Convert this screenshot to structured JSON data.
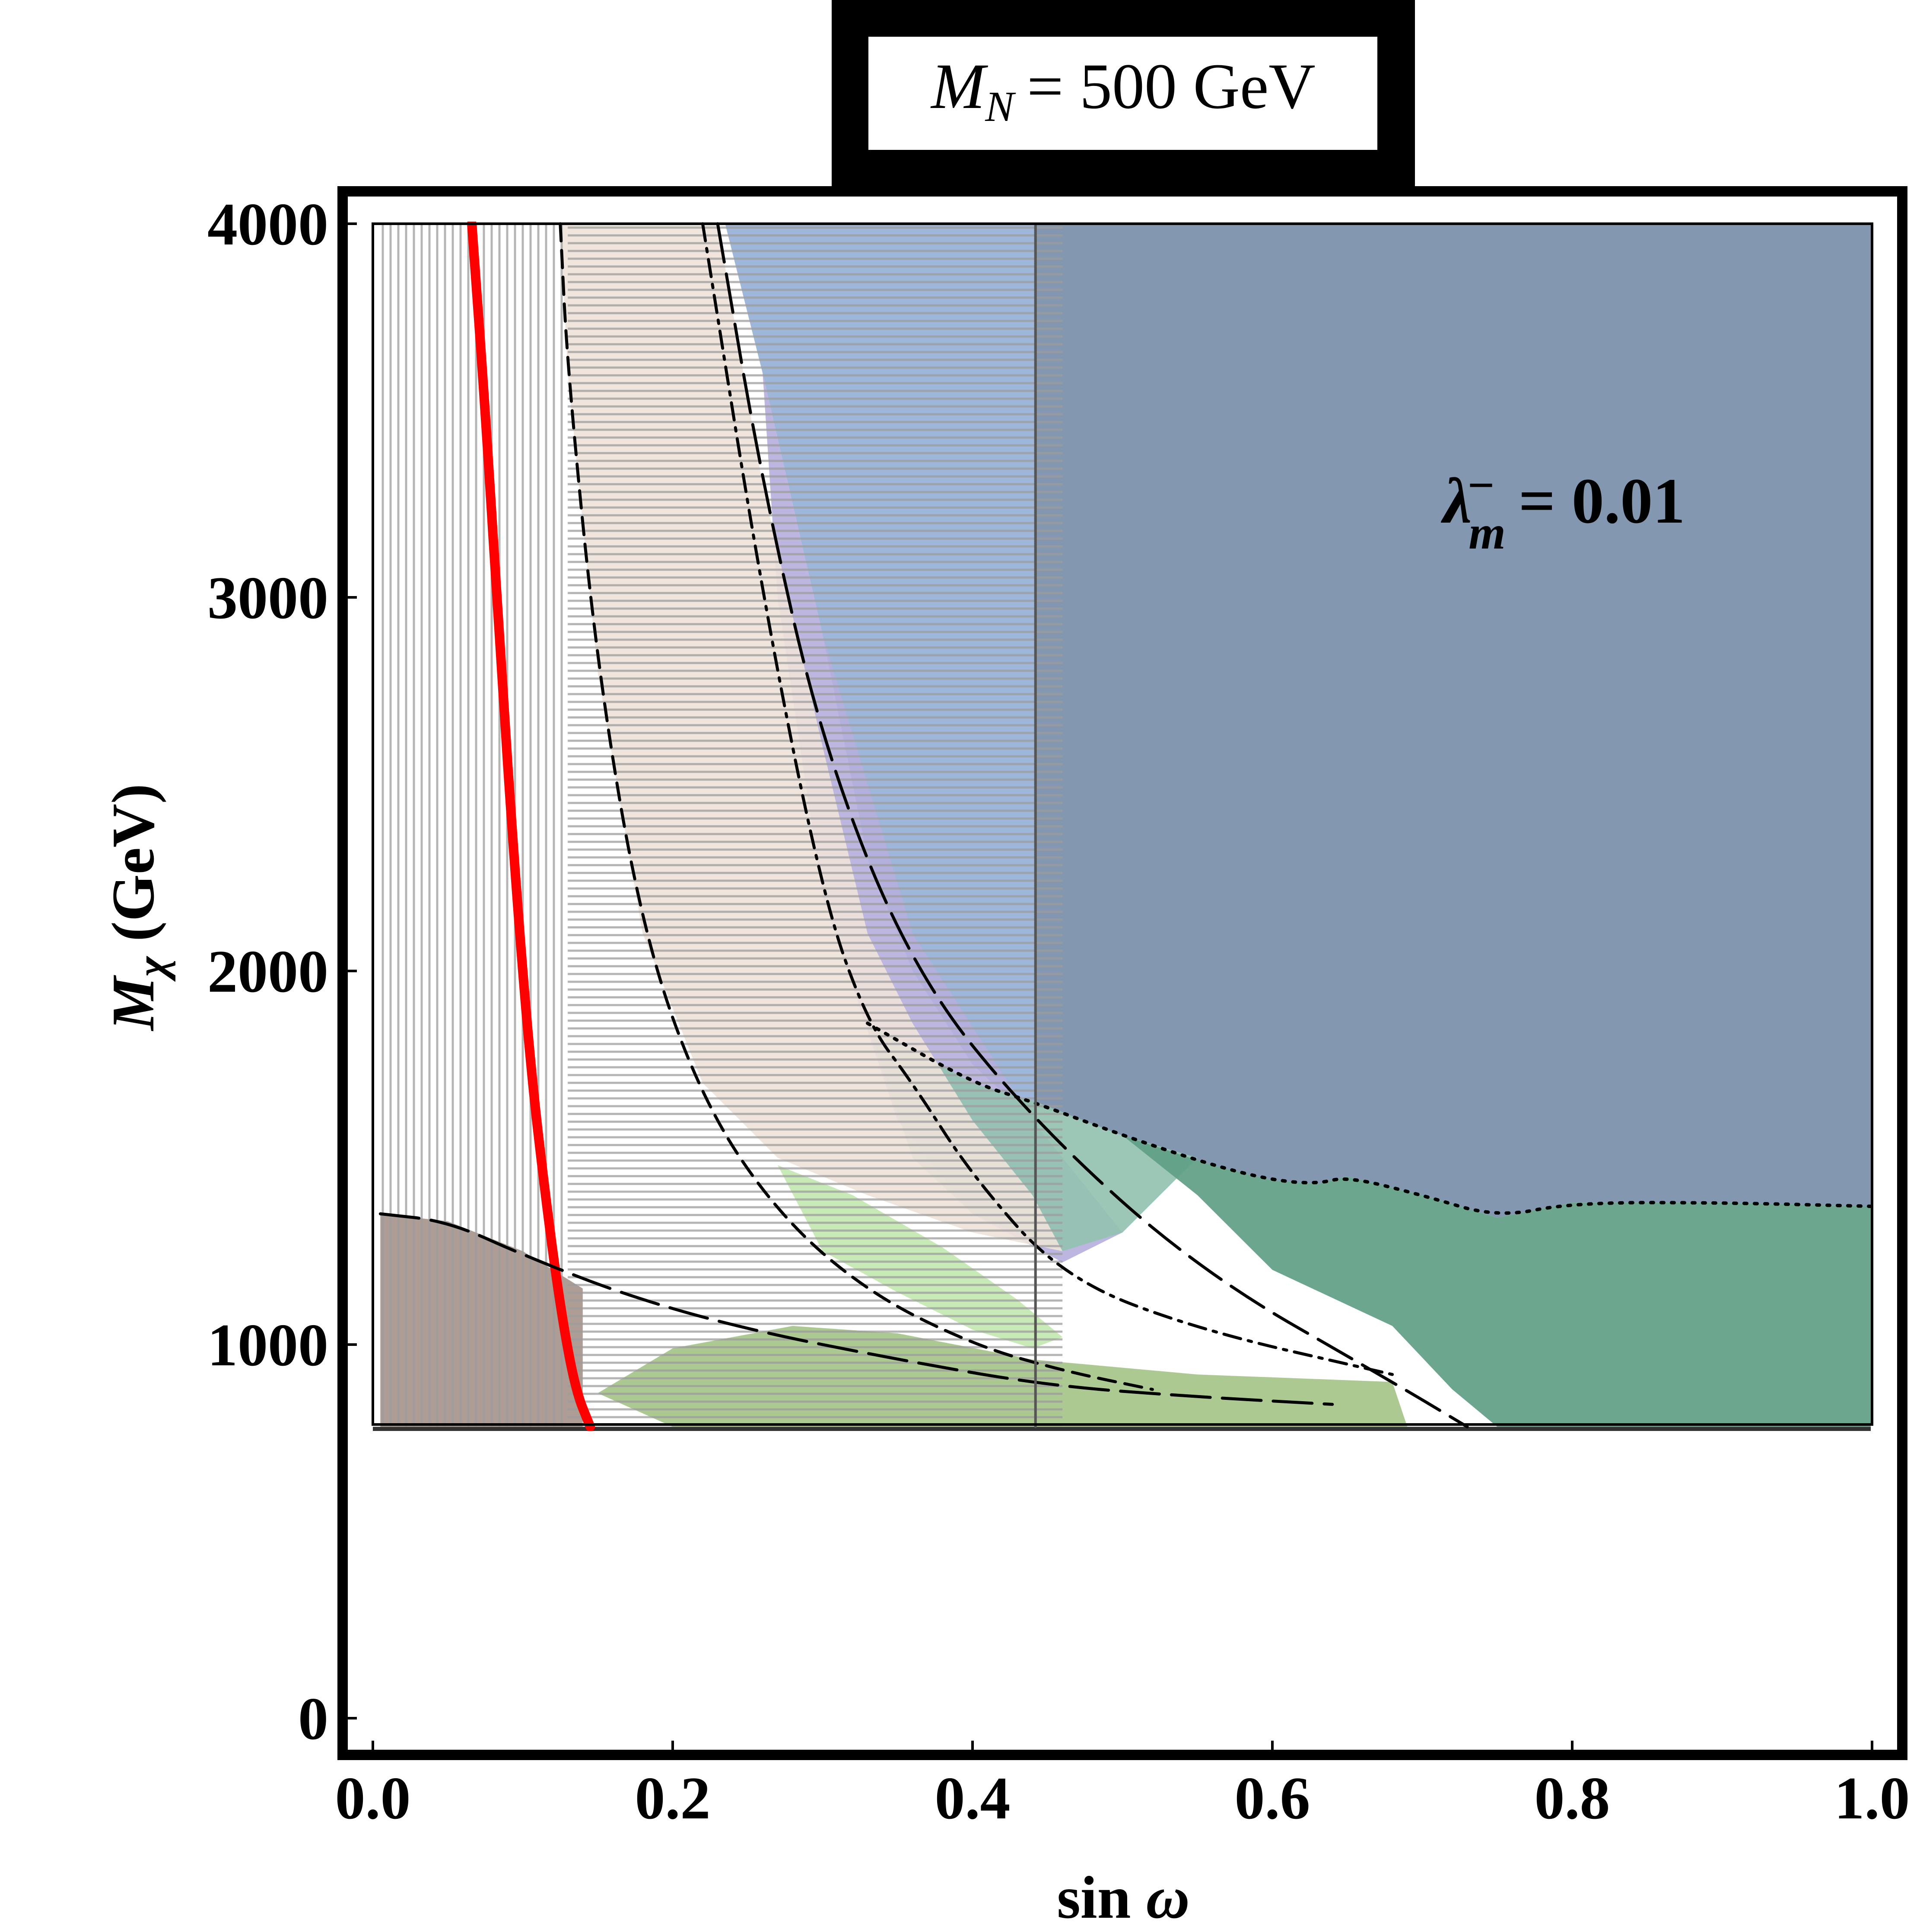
{
  "chart_data": {
    "type": "area",
    "title_box": {
      "mass_symbol": "M",
      "mass_subscript": "N",
      "value_text": "= 500 GeV"
    },
    "annotation": {
      "symbol": "λ",
      "superscript": "−",
      "subscript": "m",
      "value_text": "= 0.01"
    },
    "xlabel": {
      "prefix": "sin ",
      "symbol": "ω"
    },
    "ylabel": {
      "symbol": "M",
      "subscript": "χ",
      "suffix": " (GeV)"
    },
    "xlim": [
      0.0,
      1.0
    ],
    "ylim": [
      0,
      4000
    ],
    "xticks": [
      "0.0",
      "0.2",
      "0.4",
      "0.6",
      "0.8",
      "1.0"
    ],
    "yticks": [
      "0",
      "1000",
      "2000",
      "3000",
      "4000"
    ],
    "colors": {
      "excluded_band": "#333333",
      "region_blue": "#96b0d6",
      "region_slate": "#7a8ea9",
      "region_purple": "#b6b0de",
      "region_teal": "#94c2b0",
      "region_green": "#5f9e86",
      "region_lightgreen": "#c3e8b0",
      "region_olive": "#a6c489",
      "region_beige": "#eee3da",
      "region_brown": "#a7958c",
      "hatch": "#9c9c9c",
      "curve_red": "#ff0000"
    },
    "series": [
      {
        "name": "",
        "style": "red solid curve",
        "x": [
          0.066,
          0.075,
          0.085,
          0.095,
          0.105,
          0.115,
          0.125,
          0.135,
          0.145
        ],
        "y": [
          4000,
          3500,
          2850,
          2250,
          1750,
          1400,
          1100,
          880,
          780
        ]
      },
      {
        "name": "",
        "style": "long-dash boundary",
        "x": [
          0.23,
          0.26,
          0.3,
          0.36,
          0.44,
          0.55,
          0.68,
          0.73
        ],
        "y": [
          4000,
          3300,
          2600,
          2000,
          1600,
          1200,
          900,
          780
        ]
      },
      {
        "name": "",
        "style": "short-dash boundary",
        "x": [
          0.125,
          0.13,
          0.15,
          0.18,
          0.22,
          0.27,
          0.33,
          0.4,
          0.46,
          0.52
        ],
        "y": [
          4000,
          3600,
          2800,
          2100,
          1650,
          1350,
          1140,
          1000,
          930,
          880
        ]
      },
      {
        "name": "",
        "style": "long-dash boundary",
        "x": [
          0.005,
          0.05,
          0.1,
          0.17,
          0.25,
          0.35,
          0.45,
          0.55,
          0.64
        ],
        "y": [
          1350,
          1330,
          1240,
          1130,
          1040,
          960,
          890,
          860,
          840
        ]
      },
      {
        "name": "",
        "style": "dash-dot boundary",
        "x": [
          0.22,
          0.26,
          0.3,
          0.33,
          0.36,
          0.4,
          0.46,
          0.55,
          0.68
        ],
        "y": [
          4000,
          3000,
          2200,
          1860,
          1700,
          1450,
          1180,
          1040,
          920
        ]
      },
      {
        "name": "",
        "style": "dotted boundary",
        "x": [
          0.33,
          0.4,
          0.44,
          0.5,
          0.56,
          0.6,
          0.63,
          0.65,
          0.7,
          0.75,
          0.8,
          0.9,
          1.0
        ],
        "y": [
          1860,
          1700,
          1650,
          1560,
          1480,
          1440,
          1430,
          1450,
          1400,
          1340,
          1380,
          1380,
          1370
        ]
      },
      {
        "name": "",
        "style": "vertical line",
        "x": [
          0.442,
          0.442
        ],
        "y": [
          4000,
          780
        ]
      }
    ],
    "regions": [
      {
        "fill": "excluded_band",
        "y_range": [
          0,
          780
        ],
        "x_range": [
          0.0,
          1.0
        ]
      },
      {
        "fill": "region_blue",
        "x": [
          0.235,
          0.442,
          0.442,
          0.44,
          0.4,
          0.36,
          0.33,
          0.3,
          0.26
        ],
        "y": [
          4000,
          4000,
          1600,
          1600,
          1750,
          2000,
          2300,
          2900,
          3600
        ]
      },
      {
        "fill": "region_slate",
        "x": [
          0.442,
          1.0,
          1.0,
          0.9,
          0.8,
          0.75,
          0.7,
          0.65,
          0.63,
          0.6,
          0.56,
          0.5,
          0.442
        ],
        "y": [
          4000,
          4000,
          1370,
          1380,
          1380,
          1340,
          1400,
          1450,
          1430,
          1440,
          1480,
          1560,
          1640
        ]
      },
      {
        "fill": "region_purple",
        "x": [
          0.26,
          0.3,
          0.36,
          0.44,
          0.5,
          0.46,
          0.4,
          0.35,
          0.3,
          0.27
        ],
        "y": [
          3600,
          2900,
          2100,
          1600,
          1300,
          1220,
          1350,
          1600,
          2200,
          3000
        ]
      },
      {
        "fill": "region_teal",
        "x": [
          0.33,
          0.4,
          0.442,
          0.5,
          0.55,
          0.5,
          0.46,
          0.4,
          0.36
        ],
        "y": [
          1860,
          1700,
          1650,
          1560,
          1500,
          1300,
          1250,
          1350,
          1500
        ]
      },
      {
        "fill": "region_green",
        "x": [
          0.5,
          0.56,
          0.6,
          0.63,
          0.65,
          0.7,
          0.75,
          0.8,
          0.9,
          1.0,
          1.0,
          0.75,
          0.72,
          0.68,
          0.6,
          0.55
        ],
        "y": [
          1560,
          1480,
          1440,
          1430,
          1450,
          1400,
          1340,
          1380,
          1380,
          1370,
          780,
          780,
          880,
          1050,
          1200,
          1400
        ]
      },
      {
        "fill": "region_lightgreen",
        "x": [
          0.27,
          0.32,
          0.38,
          0.43,
          0.46,
          0.44,
          0.4,
          0.35,
          0.3
        ],
        "y": [
          1480,
          1400,
          1260,
          1120,
          1020,
          990,
          1040,
          1140,
          1250
        ]
      },
      {
        "fill": "region_olive",
        "x": [
          0.15,
          0.2,
          0.28,
          0.35,
          0.44,
          0.55,
          0.68,
          0.69,
          0.6,
          0.44,
          0.3,
          0.2
        ],
        "y": [
          870,
          990,
          1050,
          1030,
          960,
          920,
          900,
          780,
          780,
          780,
          780,
          780
        ]
      },
      {
        "fill": "region_brown",
        "x": [
          0.005,
          0.05,
          0.1,
          0.14,
          0.14,
          0.005
        ],
        "y": [
          1350,
          1330,
          1250,
          1150,
          780,
          780
        ]
      },
      {
        "fill": "region_beige",
        "x": [
          0.125,
          0.23,
          0.26,
          0.3,
          0.33,
          0.36,
          0.4,
          0.44,
          0.46,
          0.4,
          0.33,
          0.27,
          0.22,
          0.18,
          0.15,
          0.13
        ],
        "y": [
          4000,
          4000,
          3300,
          2600,
          2100,
          1860,
          1600,
          1400,
          1250,
          1300,
          1400,
          1500,
          1700,
          2100,
          2800,
          3600
        ]
      }
    ],
    "hatched_regions": [
      {
        "x_range": [
          0.005,
          0.13
        ],
        "y_range": [
          780,
          4000
        ],
        "pattern": "vertical"
      },
      {
        "x_range": [
          0.13,
          0.46
        ],
        "y_range": [
          780,
          4000
        ],
        "pattern": "horizontal"
      }
    ],
    "grid": false,
    "legend": "none"
  }
}
